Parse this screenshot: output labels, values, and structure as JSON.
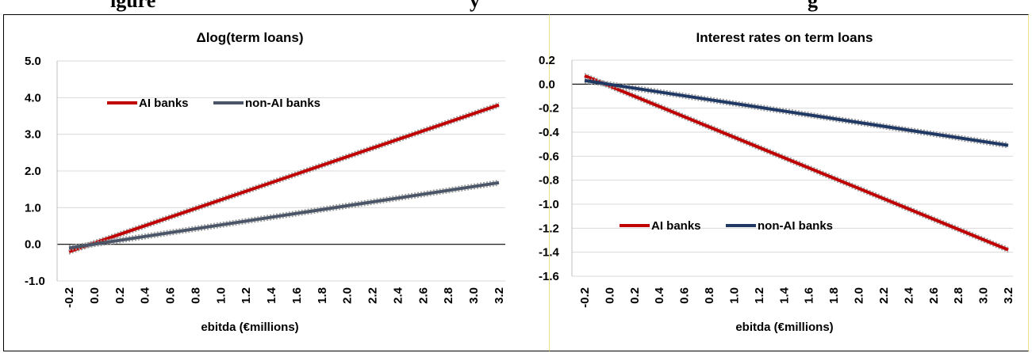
{
  "page": {
    "heading_fragment_left": "igure",
    "heading_fragment_mid": "y",
    "heading_fragment_right": "g"
  },
  "chart_data": [
    {
      "type": "line",
      "title": "Δlog(term loans)",
      "xlabel": "ebitda (€millions)",
      "ylabel": "",
      "x": [
        -0.2,
        3.2
      ],
      "xticks": [
        "-0.2",
        "0.0",
        "0.2",
        "0.4",
        "0.6",
        "0.8",
        "1.0",
        "1.2",
        "1.4",
        "1.6",
        "1.8",
        "2.0",
        "2.2",
        "2.4",
        "2.6",
        "2.8",
        "3.0",
        "3.2"
      ],
      "yticks": [
        "5.0",
        "4.0",
        "3.0",
        "2.0",
        "1.0",
        "0.0",
        "-1.0"
      ],
      "ylim": [
        -1.0,
        5.0
      ],
      "grid": true,
      "legend": "top-left",
      "series": [
        {
          "name": "AI banks",
          "color": "#c00000",
          "values": [
            -0.2,
            3.8
          ]
        },
        {
          "name": "non-AI banks",
          "color": "#4a5568",
          "values": [
            -0.1,
            1.68
          ]
        }
      ]
    },
    {
      "type": "line",
      "title": "Interest rates on term loans",
      "xlabel": "ebitda (€millions)",
      "ylabel": "",
      "x": [
        -0.2,
        3.2
      ],
      "xticks": [
        "-0.2",
        "0.0",
        "0.2",
        "0.4",
        "0.6",
        "0.8",
        "1.0",
        "1.2",
        "1.4",
        "1.6",
        "1.8",
        "2.0",
        "2.2",
        "2.4",
        "2.6",
        "2.8",
        "3.0",
        "3.2"
      ],
      "yticks": [
        "0.2",
        "0.0",
        "-0.2",
        "-0.4",
        "-0.6",
        "-0.8",
        "-1.0",
        "-1.2",
        "-1.4",
        "-1.6"
      ],
      "ylim": [
        -1.6,
        0.2
      ],
      "grid": true,
      "legend": "bottom-left",
      "series": [
        {
          "name": "AI banks",
          "color": "#c00000",
          "values": [
            0.07,
            -1.38
          ]
        },
        {
          "name": "non-AI banks",
          "color": "#1f3864",
          "values": [
            0.03,
            -0.51
          ]
        }
      ]
    }
  ]
}
